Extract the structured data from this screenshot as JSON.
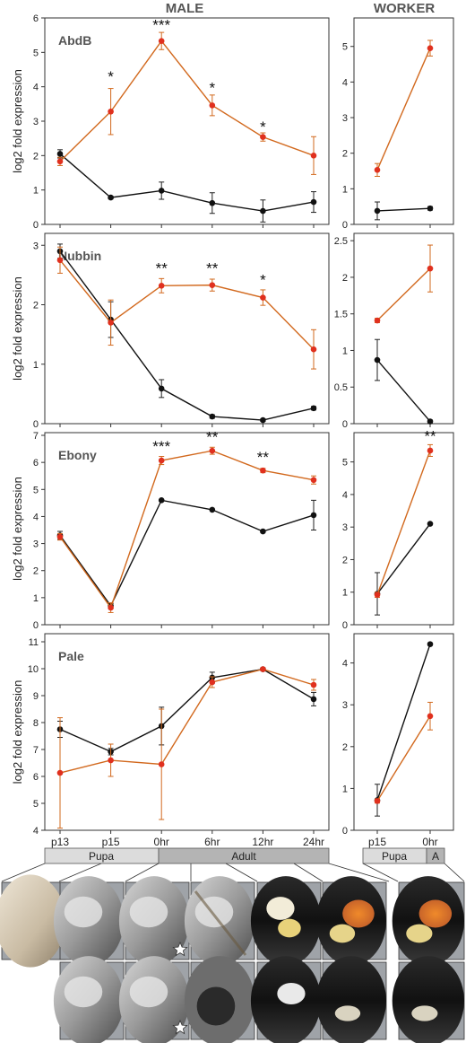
{
  "headers": {
    "male": "MALE",
    "worker": "WORKER"
  },
  "colors": {
    "black_series": "#111111",
    "red_series": "#e0301e",
    "red_line": "#d2691e",
    "stage_pupa": "#dcdcdc",
    "stage_adult": "#b4b4b4"
  },
  "ylabel": "log2 fold expression",
  "stages": {
    "male": [
      {
        "label": "Pupa"
      },
      {
        "label": "Adult"
      }
    ],
    "worker": [
      {
        "label": "Pupa"
      },
      {
        "label": "A"
      }
    ]
  },
  "photos": {
    "male_top_row": 6,
    "male_bottom_row": 5,
    "worker_column": 2,
    "star_icon": "star-icon",
    "star_positions": [
      "0hr (top row)",
      "0hr (bottom row)"
    ]
  },
  "chart_data": [
    {
      "type": "line",
      "panel": "male",
      "title": "AbdB",
      "ylabel": "log2 fold expression",
      "categories": [
        "p13",
        "p15",
        "0hr",
        "6hr",
        "12hr",
        "24hr"
      ],
      "ylim": [
        0,
        6
      ],
      "yticks": [
        0,
        1,
        2,
        3,
        4,
        5,
        6
      ],
      "show_xlabels": false,
      "series": [
        {
          "color": "black",
          "values": [
            2.05,
            0.78,
            0.98,
            0.62,
            0.39,
            0.65
          ],
          "errors": [
            0.12,
            0.04,
            0.25,
            0.3,
            0.32,
            0.3
          ]
        },
        {
          "color": "red",
          "values": [
            1.83,
            3.28,
            5.33,
            3.46,
            2.54,
            2.0
          ],
          "errors": [
            0.12,
            0.67,
            0.25,
            0.3,
            0.12,
            0.55
          ]
        }
      ],
      "annotations": [
        {
          "x": "p15",
          "y": 4.3,
          "text": "*"
        },
        {
          "x": "0hr",
          "y": 5.8,
          "text": "***"
        },
        {
          "x": "6hr",
          "y": 3.98,
          "text": "*"
        },
        {
          "x": "12hr",
          "y": 2.85,
          "text": "*"
        }
      ]
    },
    {
      "type": "line",
      "panel": "worker",
      "title": "",
      "ylabel": "",
      "categories": [
        "p15",
        "0hr"
      ],
      "ylim": [
        0,
        5.8
      ],
      "yticks": [
        0,
        1,
        2,
        3,
        4,
        5
      ],
      "show_xlabels": false,
      "series": [
        {
          "color": "black",
          "values": [
            0.38,
            0.45
          ],
          "errors": [
            0.25,
            0.05
          ]
        },
        {
          "color": "red",
          "values": [
            1.53,
            4.95
          ],
          "errors": [
            0.18,
            0.22
          ]
        }
      ],
      "annotations": []
    },
    {
      "type": "line",
      "panel": "male",
      "title": "Nubbin",
      "ylabel": "log2 fold expression",
      "categories": [
        "p13",
        "p15",
        "0hr",
        "6hr",
        "12hr",
        "24hr"
      ],
      "ylim": [
        0,
        3.2
      ],
      "yticks": [
        0,
        1,
        2,
        3
      ],
      "show_xlabels": false,
      "series": [
        {
          "color": "black",
          "values": [
            2.9,
            1.75,
            0.59,
            0.12,
            0.06,
            0.26
          ],
          "errors": [
            0.12,
            0.3,
            0.15,
            0.03,
            0.02,
            0.03
          ]
        },
        {
          "color": "red",
          "values": [
            2.75,
            1.7,
            2.32,
            2.33,
            2.12,
            1.25
          ],
          "errors": [
            0.22,
            0.38,
            0.12,
            0.1,
            0.13,
            0.33
          ]
        }
      ],
      "annotations": [
        {
          "x": "0hr",
          "y": 2.62,
          "text": "**"
        },
        {
          "x": "6hr",
          "y": 2.62,
          "text": "**"
        },
        {
          "x": "12hr",
          "y": 2.42,
          "text": "*"
        }
      ]
    },
    {
      "type": "line",
      "panel": "worker",
      "title": "",
      "ylabel": "",
      "categories": [
        "p15",
        "0hr"
      ],
      "ylim": [
        0,
        2.6
      ],
      "yticks": [
        0,
        0.5,
        1,
        1.5,
        2,
        2.5
      ],
      "show_xlabels": false,
      "series": [
        {
          "color": "black",
          "values": [
            0.87,
            0.03
          ],
          "errors": [
            0.28,
            0.02
          ]
        },
        {
          "color": "red",
          "values": [
            1.41,
            2.12
          ],
          "errors": [
            0.03,
            0.32
          ]
        }
      ],
      "annotations": []
    },
    {
      "type": "line",
      "panel": "male",
      "title": "Ebony",
      "ylabel": "log2 fold expression",
      "categories": [
        "p13",
        "p15",
        "0hr",
        "6hr",
        "12hr",
        "24hr"
      ],
      "ylim": [
        0,
        7.1
      ],
      "yticks": [
        0,
        1,
        2,
        3,
        4,
        5,
        6,
        7
      ],
      "show_xlabels": false,
      "series": [
        {
          "color": "black",
          "values": [
            3.3,
            0.7,
            4.6,
            4.25,
            3.45,
            4.05
          ],
          "errors": [
            0.15,
            0.08,
            0.03,
            0.03,
            0.03,
            0.55
          ]
        },
        {
          "color": "red",
          "values": [
            3.25,
            0.63,
            6.07,
            6.43,
            5.7,
            5.35
          ],
          "errors": [
            0.12,
            0.18,
            0.15,
            0.13,
            0.08,
            0.15
          ]
        }
      ],
      "annotations": [
        {
          "x": "0hr",
          "y": 6.6,
          "text": "***"
        },
        {
          "x": "6hr",
          "y": 6.95,
          "text": "**"
        },
        {
          "x": "12hr",
          "y": 6.2,
          "text": "**"
        }
      ]
    },
    {
      "type": "line",
      "panel": "worker",
      "title": "",
      "ylabel": "",
      "categories": [
        "p15",
        "0hr"
      ],
      "ylim": [
        0,
        5.9
      ],
      "yticks": [
        0,
        1,
        2,
        3,
        4,
        5
      ],
      "show_xlabels": false,
      "series": [
        {
          "color": "black",
          "values": [
            0.95,
            3.1
          ],
          "errors": [
            0.65,
            0.03
          ]
        },
        {
          "color": "red",
          "values": [
            0.92,
            5.35
          ],
          "errors": [
            0.08,
            0.18
          ]
        }
      ],
      "annotations": [
        {
          "x": "0hr",
          "y": 5.8,
          "text": "**"
        }
      ]
    },
    {
      "type": "line",
      "panel": "male",
      "title": "Pale",
      "ylabel": "log2 fold expression",
      "categories": [
        "p13",
        "p15",
        "0hr",
        "6hr",
        "12hr",
        "24hr"
      ],
      "ylim": [
        4,
        11.3
      ],
      "yticks": [
        4,
        5,
        6,
        7,
        8,
        9,
        10,
        11
      ],
      "show_xlabels": true,
      "series": [
        {
          "color": "black",
          "values": [
            7.75,
            6.92,
            7.87,
            9.67,
            9.98,
            8.87
          ],
          "errors": [
            0.3,
            0.12,
            0.7,
            0.2,
            0.05,
            0.25
          ]
        },
        {
          "color": "red",
          "values": [
            6.13,
            6.6,
            6.45,
            9.5,
            9.98,
            9.4
          ],
          "errors": [
            2.05,
            0.6,
            2.05,
            0.2,
            0.05,
            0.2
          ]
        }
      ],
      "annotations": []
    },
    {
      "type": "line",
      "panel": "worker",
      "title": "",
      "ylabel": "",
      "categories": [
        "p15",
        "0hr"
      ],
      "ylim": [
        0,
        4.7
      ],
      "yticks": [
        0,
        1,
        2,
        3,
        4
      ],
      "show_xlabels": true,
      "series": [
        {
          "color": "black",
          "values": [
            0.72,
            4.45
          ],
          "errors": [
            0.38,
            0.03
          ]
        },
        {
          "color": "red",
          "values": [
            0.7,
            2.73
          ],
          "errors": [
            0.05,
            0.33
          ]
        }
      ],
      "annotations": []
    }
  ]
}
